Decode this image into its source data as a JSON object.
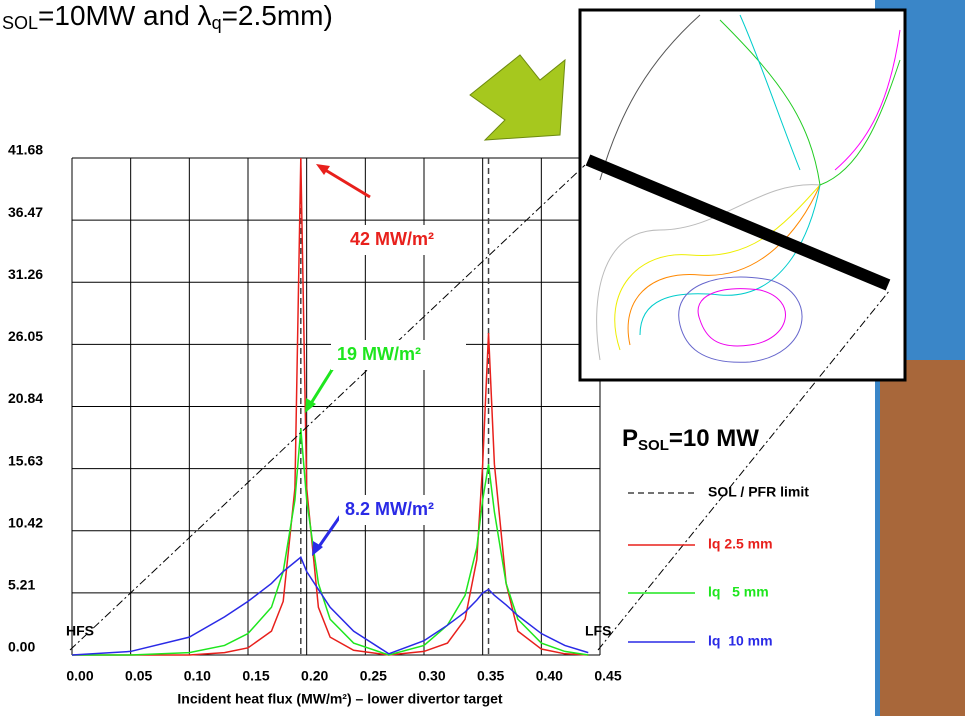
{
  "chart_data": {
    "type": "line",
    "title_parts": [
      "SOL",
      "=10MW and λ",
      "q",
      "=2.5mm)"
    ],
    "x_label": "Incident heat flux (MW/m²) – lower divertor target",
    "x": [
      0,
      0.05,
      0.1,
      0.13,
      0.15,
      0.17,
      0.18,
      0.19,
      0.195,
      0.2,
      0.21,
      0.22,
      0.24,
      0.27,
      0.3,
      0.32,
      0.335,
      0.345,
      0.35,
      0.355,
      0.36,
      0.37,
      0.38,
      0.4,
      0.42,
      0.44
    ],
    "series": [
      {
        "name": "lq 2.5 mm",
        "color": "#e8201c",
        "values": [
          0,
          0,
          0,
          0.2,
          0.6,
          2,
          4.5,
          14,
          41.68,
          14,
          4,
          1.5,
          0.4,
          0,
          0.3,
          1,
          3,
          8,
          16,
          27,
          16,
          6,
          2,
          0.5,
          0.1,
          0
        ]
      },
      {
        "name": "lq   5 mm",
        "color": "#1ee61e",
        "values": [
          0,
          0,
          0.2,
          0.8,
          1.8,
          4,
          7,
          13,
          19,
          13,
          6,
          3,
          1,
          0,
          0.8,
          2.5,
          5,
          9,
          13,
          16,
          12,
          6,
          3,
          1,
          0.3,
          0
        ]
      },
      {
        "name": "lq  10 mm",
        "color": "#2a2ae6",
        "values": [
          0,
          0.3,
          1.5,
          3.2,
          4.5,
          6,
          7,
          7.8,
          8.2,
          7,
          5.5,
          4,
          2,
          0.1,
          1.2,
          2.5,
          3.6,
          4.6,
          5.2,
          5.5,
          5,
          4.2,
          3.3,
          1.8,
          0.8,
          0.2
        ]
      }
    ],
    "limits": {
      "name": "SOL / PFR limit",
      "color": "#444444",
      "x": [
        0.195,
        0.355
      ]
    },
    "xlim": [
      0,
      0.45
    ],
    "xticks": [
      {
        "value": 0,
        "label": "0.00"
      },
      0.05,
      {
        "value": 0.1,
        "label": "0.10"
      },
      0.15,
      {
        "value": 0.2,
        "label": "0.20"
      },
      0.25,
      {
        "value": 0.3,
        "label": "0.30"
      },
      0.35,
      {
        "value": 0.4,
        "label": "0.40"
      },
      0.45
    ],
    "ylim": [
      0,
      41.68
    ],
    "yticks": [
      {
        "value": 0,
        "label": "0.00"
      },
      5.21,
      10.42,
      15.63,
      20.84,
      26.05,
      31.26,
      36.47,
      41.68
    ],
    "grid": true,
    "annotations": [
      {
        "text": "42 MW/m²",
        "color": "#e8201c"
      },
      {
        "text": "19 MW/m²",
        "color": "#1ee61e"
      },
      {
        "text": "8.2 MW/m²",
        "color": "#2a2ae6"
      }
    ],
    "side_labels": [
      "HFS",
      "LFS"
    ],
    "psol_parts": [
      "P",
      "SOL",
      "=10 MW"
    ]
  }
}
